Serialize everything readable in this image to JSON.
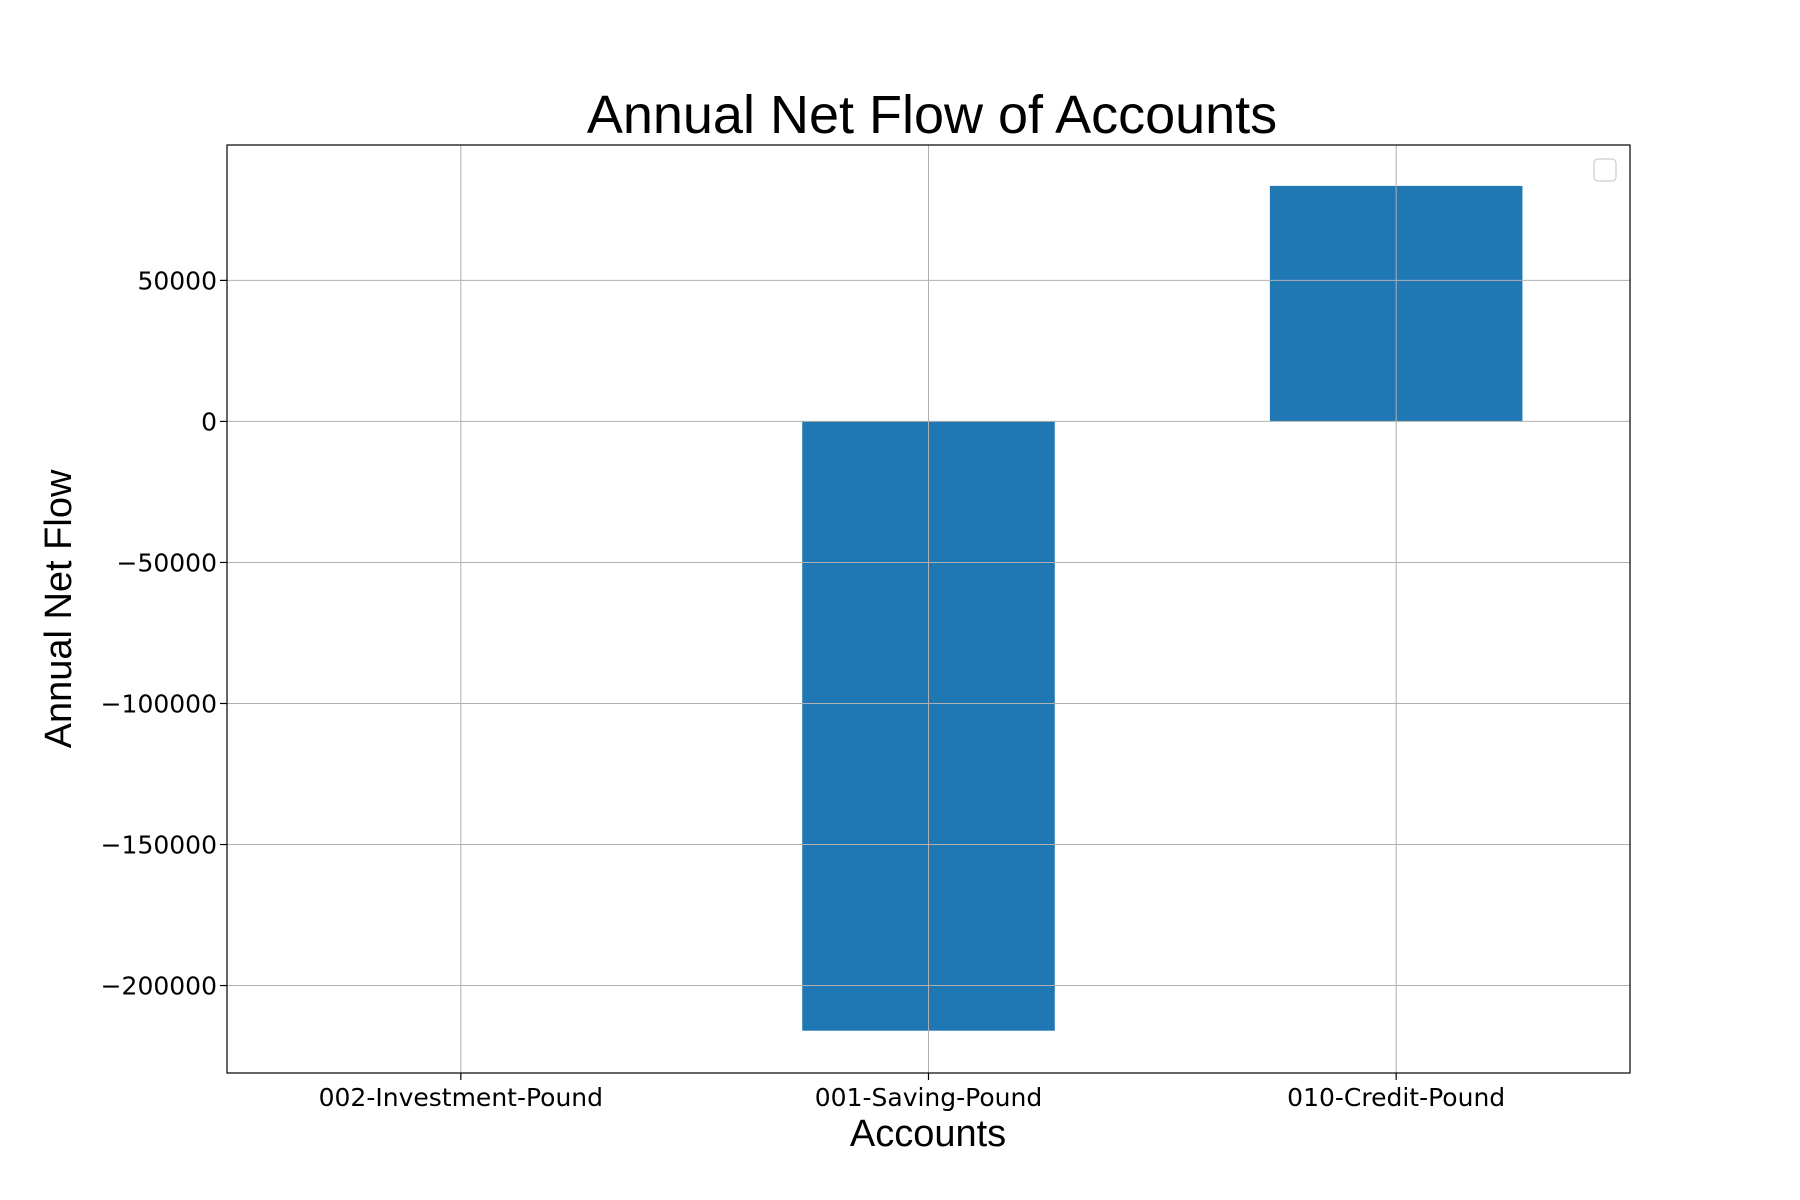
{
  "chart_data": {
    "type": "bar",
    "title": "Annual Net Flow of Accounts",
    "xlabel": "Accounts",
    "ylabel": "Annual Net Flow",
    "categories": [
      "002-Investment-Pound",
      "001-Saving-Pound",
      "010-Credit-Pound"
    ],
    "values": [
      0,
      -216000,
      83500
    ],
    "ylim": [
      -231000,
      98000
    ],
    "yticks": [
      50000,
      0,
      -50000,
      -100000,
      -150000,
      -200000
    ],
    "ytick_labels": [
      "50000",
      "0",
      "−50000",
      "−100000",
      "−150000",
      "−200000"
    ],
    "grid": true,
    "legend": "top-right",
    "legend_entries": [],
    "bar_color": "#1f77b4"
  }
}
